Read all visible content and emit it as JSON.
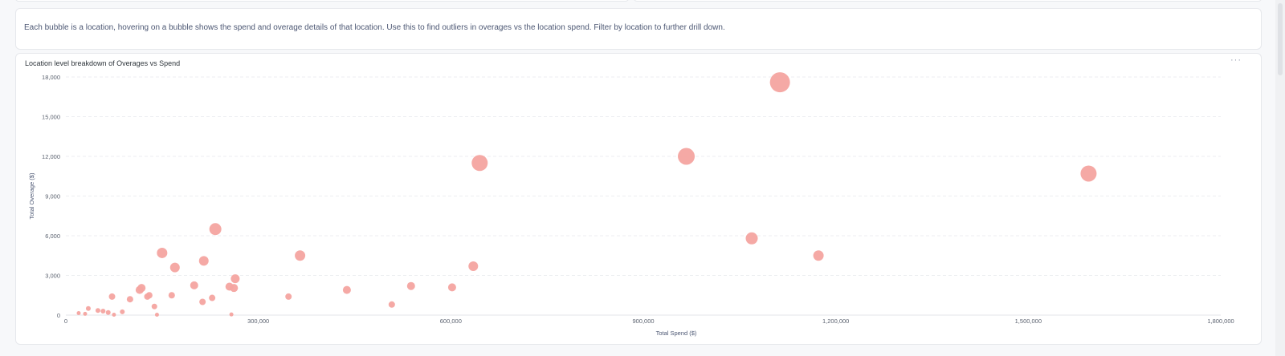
{
  "description": "Each bubble is a location, hovering on a bubble shows the spend and overage details of that location. Use this to find outliers in overages vs the location spend. Filter by location to further drill down.",
  "menu_label": "···",
  "chart_data": {
    "type": "scatter",
    "title": "Location level breakdown of Overages vs Spend",
    "xlabel": "Total Spend ($)",
    "ylabel": "Total Overage ($)",
    "xlim": [
      0,
      1800000
    ],
    "ylim": [
      0,
      18000
    ],
    "x_ticks": [
      0,
      300000,
      600000,
      900000,
      1200000,
      1500000,
      1800000
    ],
    "y_ticks": [
      0,
      3000,
      6000,
      9000,
      12000,
      15000,
      18000
    ],
    "x_tick_labels": [
      "0",
      "300,000",
      "600,000",
      "900,000",
      "1,200,000",
      "1,500,000",
      "1,800,000"
    ],
    "y_tick_labels": [
      "0",
      "3,000",
      "6,000",
      "9,000",
      "12,000",
      "15,000",
      "18,000"
    ],
    "grid": true,
    "color": "#f4a4a0",
    "points": [
      {
        "x": 20000,
        "y": 150,
        "size": 2.5
      },
      {
        "x": 30000,
        "y": 100,
        "size": 2.5
      },
      {
        "x": 35000,
        "y": 500,
        "size": 3
      },
      {
        "x": 50000,
        "y": 350,
        "size": 3
      },
      {
        "x": 58000,
        "y": 300,
        "size": 3
      },
      {
        "x": 66000,
        "y": 200,
        "size": 3
      },
      {
        "x": 72000,
        "y": 1400,
        "size": 4
      },
      {
        "x": 75000,
        "y": 30,
        "size": 2.5
      },
      {
        "x": 88000,
        "y": 250,
        "size": 3
      },
      {
        "x": 100000,
        "y": 1200,
        "size": 4
      },
      {
        "x": 115000,
        "y": 1900,
        "size": 5
      },
      {
        "x": 118000,
        "y": 2050,
        "size": 5
      },
      {
        "x": 127000,
        "y": 1400,
        "size": 4
      },
      {
        "x": 130000,
        "y": 1500,
        "size": 4
      },
      {
        "x": 138000,
        "y": 650,
        "size": 3.5
      },
      {
        "x": 142000,
        "y": 30,
        "size": 2.5
      },
      {
        "x": 150000,
        "y": 4700,
        "size": 6.5
      },
      {
        "x": 165000,
        "y": 1500,
        "size": 4
      },
      {
        "x": 170000,
        "y": 3600,
        "size": 6
      },
      {
        "x": 200000,
        "y": 2250,
        "size": 5
      },
      {
        "x": 213000,
        "y": 1000,
        "size": 4
      },
      {
        "x": 215000,
        "y": 4100,
        "size": 6
      },
      {
        "x": 228000,
        "y": 1300,
        "size": 4
      },
      {
        "x": 233000,
        "y": 6500,
        "size": 7.5
      },
      {
        "x": 255000,
        "y": 2150,
        "size": 5
      },
      {
        "x": 258000,
        "y": 50,
        "size": 2.5
      },
      {
        "x": 262000,
        "y": 2050,
        "size": 5
      },
      {
        "x": 264000,
        "y": 2750,
        "size": 5.5
      },
      {
        "x": 347000,
        "y": 1400,
        "size": 4
      },
      {
        "x": 365000,
        "y": 4500,
        "size": 6.5
      },
      {
        "x": 438000,
        "y": 1900,
        "size": 5
      },
      {
        "x": 508000,
        "y": 800,
        "size": 4
      },
      {
        "x": 538000,
        "y": 2200,
        "size": 5
      },
      {
        "x": 602000,
        "y": 2100,
        "size": 5
      },
      {
        "x": 635000,
        "y": 3700,
        "size": 6
      },
      {
        "x": 645000,
        "y": 11500,
        "size": 10
      },
      {
        "x": 967000,
        "y": 12000,
        "size": 10.5
      },
      {
        "x": 1069000,
        "y": 5800,
        "size": 7.5
      },
      {
        "x": 1113000,
        "y": 17600,
        "size": 12.5
      },
      {
        "x": 1173000,
        "y": 4500,
        "size": 6.5
      },
      {
        "x": 1594000,
        "y": 10700,
        "size": 10
      }
    ]
  }
}
